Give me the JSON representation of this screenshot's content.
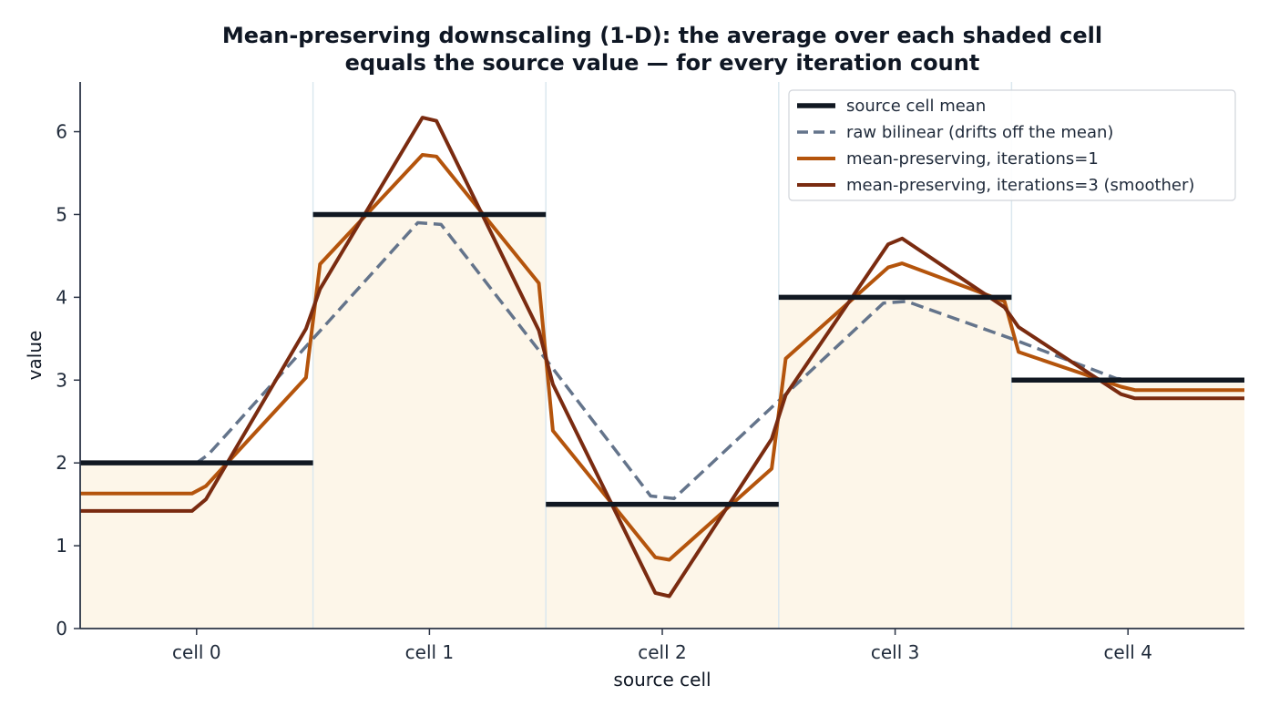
{
  "chart_data": {
    "type": "line",
    "title_lines": [
      "Mean-preserving downscaling (1-D): the average over each shaded cell",
      "equals the source value — for every iteration count"
    ],
    "xlabel": "source cell",
    "ylabel": "value",
    "categories": [
      "cell 0",
      "cell 1",
      "cell 2",
      "cell 3",
      "cell 4"
    ],
    "xlim": [
      -0.5,
      4.5
    ],
    "ylim": [
      0,
      6.6
    ],
    "yticks": [
      0,
      1,
      2,
      3,
      4,
      5,
      6
    ],
    "grid": false,
    "legend_position": "top-right",
    "colors": {
      "cell_fill": "#fdf6e9",
      "cell_divider": "#dbe8ef",
      "axis": "#2b3445"
    },
    "source_means": {
      "name": "source cell mean",
      "color": "#111822",
      "values": [
        2,
        5,
        1.5,
        4,
        3
      ]
    },
    "series": [
      {
        "name": "raw bilinear (drifts off the mean)",
        "color": "#64748b",
        "dashed": true,
        "points": [
          [
            -0.5,
            2.0
          ],
          [
            0.0,
            2.0
          ],
          [
            0.05,
            2.1
          ],
          [
            0.5,
            3.5
          ],
          [
            0.95,
            4.9
          ],
          [
            1.05,
            4.88
          ],
          [
            1.5,
            3.25
          ],
          [
            1.95,
            1.6
          ],
          [
            2.05,
            1.57
          ],
          [
            2.5,
            2.75
          ],
          [
            2.95,
            3.93
          ],
          [
            3.05,
            3.95
          ],
          [
            3.5,
            3.5
          ],
          [
            3.95,
            3.02
          ],
          [
            4.05,
            3.0
          ],
          [
            4.5,
            3.0
          ]
        ]
      },
      {
        "name": "mean-preserving, iterations=1",
        "color": "#b4540c",
        "dashed": false,
        "points": [
          [
            -0.5,
            1.63
          ],
          [
            -0.02,
            1.63
          ],
          [
            0.04,
            1.72
          ],
          [
            0.47,
            3.03
          ],
          [
            0.53,
            4.4
          ],
          [
            0.97,
            5.72
          ],
          [
            1.03,
            5.7
          ],
          [
            1.47,
            4.17
          ],
          [
            1.53,
            2.39
          ],
          [
            1.97,
            0.86
          ],
          [
            2.03,
            0.83
          ],
          [
            2.47,
            1.93
          ],
          [
            2.53,
            3.26
          ],
          [
            2.97,
            4.36
          ],
          [
            3.03,
            4.41
          ],
          [
            3.47,
            3.95
          ],
          [
            3.53,
            3.34
          ],
          [
            3.97,
            2.92
          ],
          [
            4.03,
            2.88
          ],
          [
            4.5,
            2.88
          ]
        ]
      },
      {
        "name": "mean-preserving, iterations=3 (smoother)",
        "color": "#7a2b10",
        "dashed": false,
        "points": [
          [
            -0.5,
            1.42
          ],
          [
            -0.02,
            1.42
          ],
          [
            0.04,
            1.56
          ],
          [
            0.47,
            3.62
          ],
          [
            0.53,
            4.1
          ],
          [
            0.97,
            6.17
          ],
          [
            1.03,
            6.13
          ],
          [
            1.47,
            3.6
          ],
          [
            1.53,
            2.95
          ],
          [
            1.97,
            0.43
          ],
          [
            2.03,
            0.39
          ],
          [
            2.47,
            2.29
          ],
          [
            2.53,
            2.82
          ],
          [
            2.97,
            4.64
          ],
          [
            3.03,
            4.71
          ],
          [
            3.47,
            3.88
          ],
          [
            3.53,
            3.64
          ],
          [
            3.97,
            2.83
          ],
          [
            4.03,
            2.78
          ],
          [
            4.5,
            2.78
          ]
        ]
      }
    ]
  }
}
